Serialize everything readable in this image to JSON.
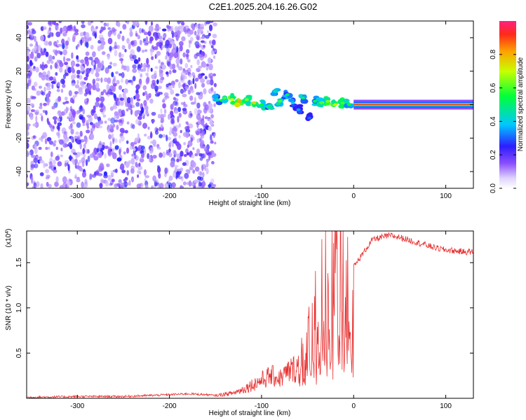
{
  "title": "C2E1.2025.204.16.26.G02",
  "colors": {
    "scatter_noise": "#8a4dff",
    "snr_line": "#e83030",
    "ridge_core": "#ff2a1a",
    "background": "#ffffff"
  },
  "chart_data": [
    {
      "type": "heatmap",
      "title": "C2E1.2025.204.16.26.G02",
      "xlabel": "Height of straight line (km)",
      "ylabel": "Frequency (Hz)",
      "xlim": [
        -355,
        130
      ],
      "ylim": [
        -50,
        50
      ],
      "x_ticks": [
        "-300",
        "-200",
        "-100",
        "0",
        "100"
      ],
      "x_tick_values": [
        -300,
        -200,
        -100,
        0,
        100
      ],
      "y_ticks": [
        "-40",
        "-20",
        "0",
        "20",
        "40"
      ],
      "y_tick_values": [
        -40,
        -20,
        0,
        20,
        40
      ],
      "colorbar": {
        "label": "Normalized spectral amplitude",
        "range": [
          0.0,
          1.0
        ],
        "ticks": [
          "0.0",
          "0.2",
          "0.4",
          "0.6",
          "0.8"
        ],
        "tick_values": [
          0.0,
          0.2,
          0.4,
          0.6,
          0.8
        ],
        "colormap": "rainbow"
      },
      "features": {
        "noise_region_km": [
          -355,
          -150
        ],
        "ridge_segment_km": [
          -150,
          0
        ],
        "stable_line_km": [
          0,
          130
        ],
        "stable_line_frequency_hz": 0
      },
      "ridge_points": [
        {
          "x": -148,
          "y": 3,
          "v": 0.45
        },
        {
          "x": -140,
          "y": 4,
          "v": 0.6
        },
        {
          "x": -132,
          "y": 3,
          "v": 0.7
        },
        {
          "x": -124,
          "y": 2,
          "v": 0.8
        },
        {
          "x": -116,
          "y": 3,
          "v": 0.65
        },
        {
          "x": -108,
          "y": 1,
          "v": 0.75
        },
        {
          "x": -100,
          "y": 0,
          "v": 0.55
        },
        {
          "x": -92,
          "y": -1,
          "v": 0.5
        },
        {
          "x": -85,
          "y": 8,
          "v": 0.45
        },
        {
          "x": -80,
          "y": 2,
          "v": 0.6
        },
        {
          "x": -72,
          "y": 6,
          "v": 0.5
        },
        {
          "x": -66,
          "y": 1,
          "v": 0.4
        },
        {
          "x": -60,
          "y": -3,
          "v": 0.35
        },
        {
          "x": -55,
          "y": 4,
          "v": 0.5
        },
        {
          "x": -48,
          "y": -8,
          "v": 0.3
        },
        {
          "x": -42,
          "y": 2,
          "v": 0.55
        },
        {
          "x": -35,
          "y": 1,
          "v": 0.6
        },
        {
          "x": -28,
          "y": 2,
          "v": 0.65
        },
        {
          "x": -20,
          "y": 0,
          "v": 0.7
        },
        {
          "x": -12,
          "y": 1,
          "v": 0.6
        },
        {
          "x": -5,
          "y": 0,
          "v": 0.55
        }
      ]
    },
    {
      "type": "line",
      "xlabel": "Height of straight line (km)",
      "ylabel": "SNR (10 * v/v)",
      "y_multiplier_label": "(x10",
      "y_multiplier_exponent": "4",
      "y_multiplier_suffix": ")",
      "xlim": [
        -355,
        130
      ],
      "ylim": [
        0.0,
        1.85
      ],
      "x_ticks": [
        "-300",
        "-200",
        "-100",
        "0",
        "100"
      ],
      "x_tick_values": [
        -300,
        -200,
        -100,
        0,
        100
      ],
      "y_ticks": [
        "0.5",
        "1.0",
        "1.5"
      ],
      "y_tick_values": [
        0.5,
        1.0,
        1.5
      ],
      "series": [
        {
          "color": "#e83030",
          "x": [
            -355,
            -300,
            -250,
            -200,
            -180,
            -160,
            -150,
            -130,
            -120,
            -110,
            -100,
            -90,
            -80,
            -70,
            -60,
            -55,
            -50,
            -45,
            -40,
            -35,
            -30,
            -25,
            -20,
            -15,
            -10,
            -5,
            0,
            10,
            20,
            30,
            40,
            50,
            60,
            70,
            80,
            90,
            100,
            110,
            120,
            130
          ],
          "y": [
            0.01,
            0.02,
            0.02,
            0.04,
            0.05,
            0.04,
            0.03,
            0.06,
            0.1,
            0.15,
            0.2,
            0.25,
            0.22,
            0.3,
            0.35,
            0.45,
            0.6,
            0.75,
            0.9,
            1.2,
            1.5,
            1.1,
            1.6,
            1.7,
            1.3,
            1.2,
            1.45,
            1.6,
            1.75,
            1.78,
            1.8,
            1.78,
            1.75,
            1.72,
            1.69,
            1.66,
            1.64,
            1.63,
            1.62,
            1.62
          ]
        }
      ]
    }
  ]
}
